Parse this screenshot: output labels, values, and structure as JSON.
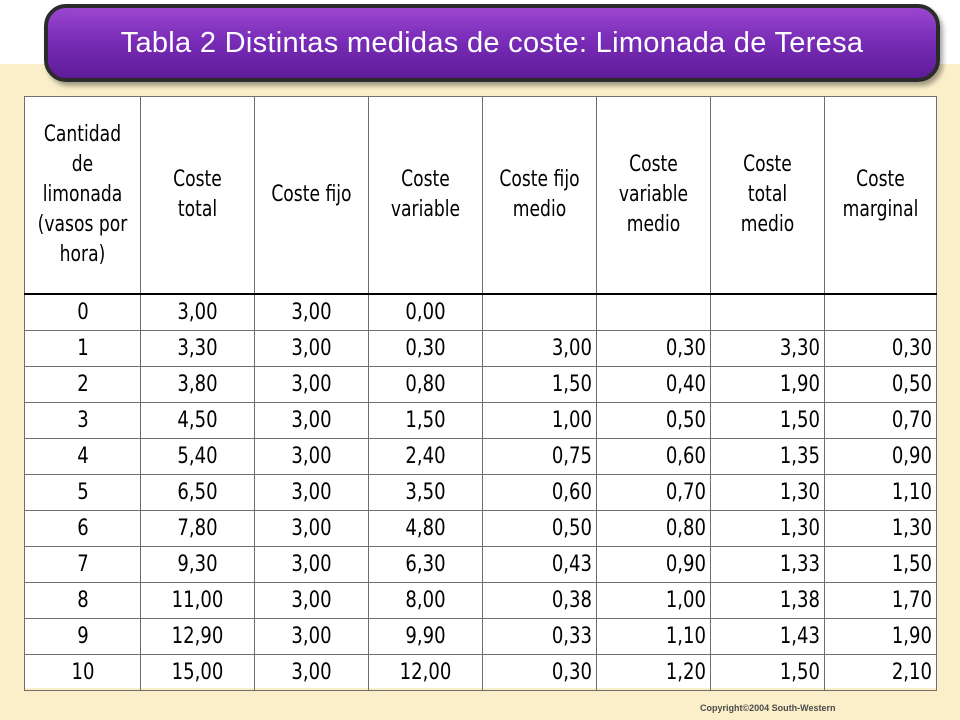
{
  "title": "Tabla 2 Distintas medidas de coste: Limonada de Teresa",
  "table": {
    "headers": [
      "Cantidad de limonada (vasos por hora)",
      "Coste total",
      "Coste fijo",
      "Coste variable",
      "Coste fijo medio",
      "Coste variable medio",
      "Coste total medio",
      "Coste marginal"
    ],
    "rows": [
      [
        "0",
        "3,00",
        "3,00",
        "0,00",
        "",
        "",
        "",
        ""
      ],
      [
        "1",
        "3,30",
        "3,00",
        "0,30",
        "3,00",
        "0,30",
        "3,30",
        "0,30"
      ],
      [
        "2",
        "3,80",
        "3,00",
        "0,80",
        "1,50",
        "0,40",
        "1,90",
        "0,50"
      ],
      [
        "3",
        "4,50",
        "3,00",
        "1,50",
        "1,00",
        "0,50",
        "1,50",
        "0,70"
      ],
      [
        "4",
        "5,40",
        "3,00",
        "2,40",
        "0,75",
        "0,60",
        "1,35",
        "0,90"
      ],
      [
        "5",
        "6,50",
        "3,00",
        "3,50",
        "0,60",
        "0,70",
        "1,30",
        "1,10"
      ],
      [
        "6",
        "7,80",
        "3,00",
        "4,80",
        "0,50",
        "0,80",
        "1,30",
        "1,30"
      ],
      [
        "7",
        "9,30",
        "3,00",
        "6,30",
        "0,43",
        "0,90",
        "1,33",
        "1,50"
      ],
      [
        "8",
        "11,00",
        "3,00",
        "8,00",
        "0,38",
        "1,00",
        "1,38",
        "1,70"
      ],
      [
        "9",
        "12,90",
        "3,00",
        "9,90",
        "0,33",
        "1,10",
        "1,43",
        "1,90"
      ],
      [
        "10",
        "15,00",
        "3,00",
        "12,00",
        "0,30",
        "1,20",
        "1,50",
        "2,10"
      ]
    ]
  },
  "copyright": "Copyright©2004  South-Western",
  "colors": {
    "title_bar": "#7a2db8",
    "background": "#fbefc9"
  }
}
